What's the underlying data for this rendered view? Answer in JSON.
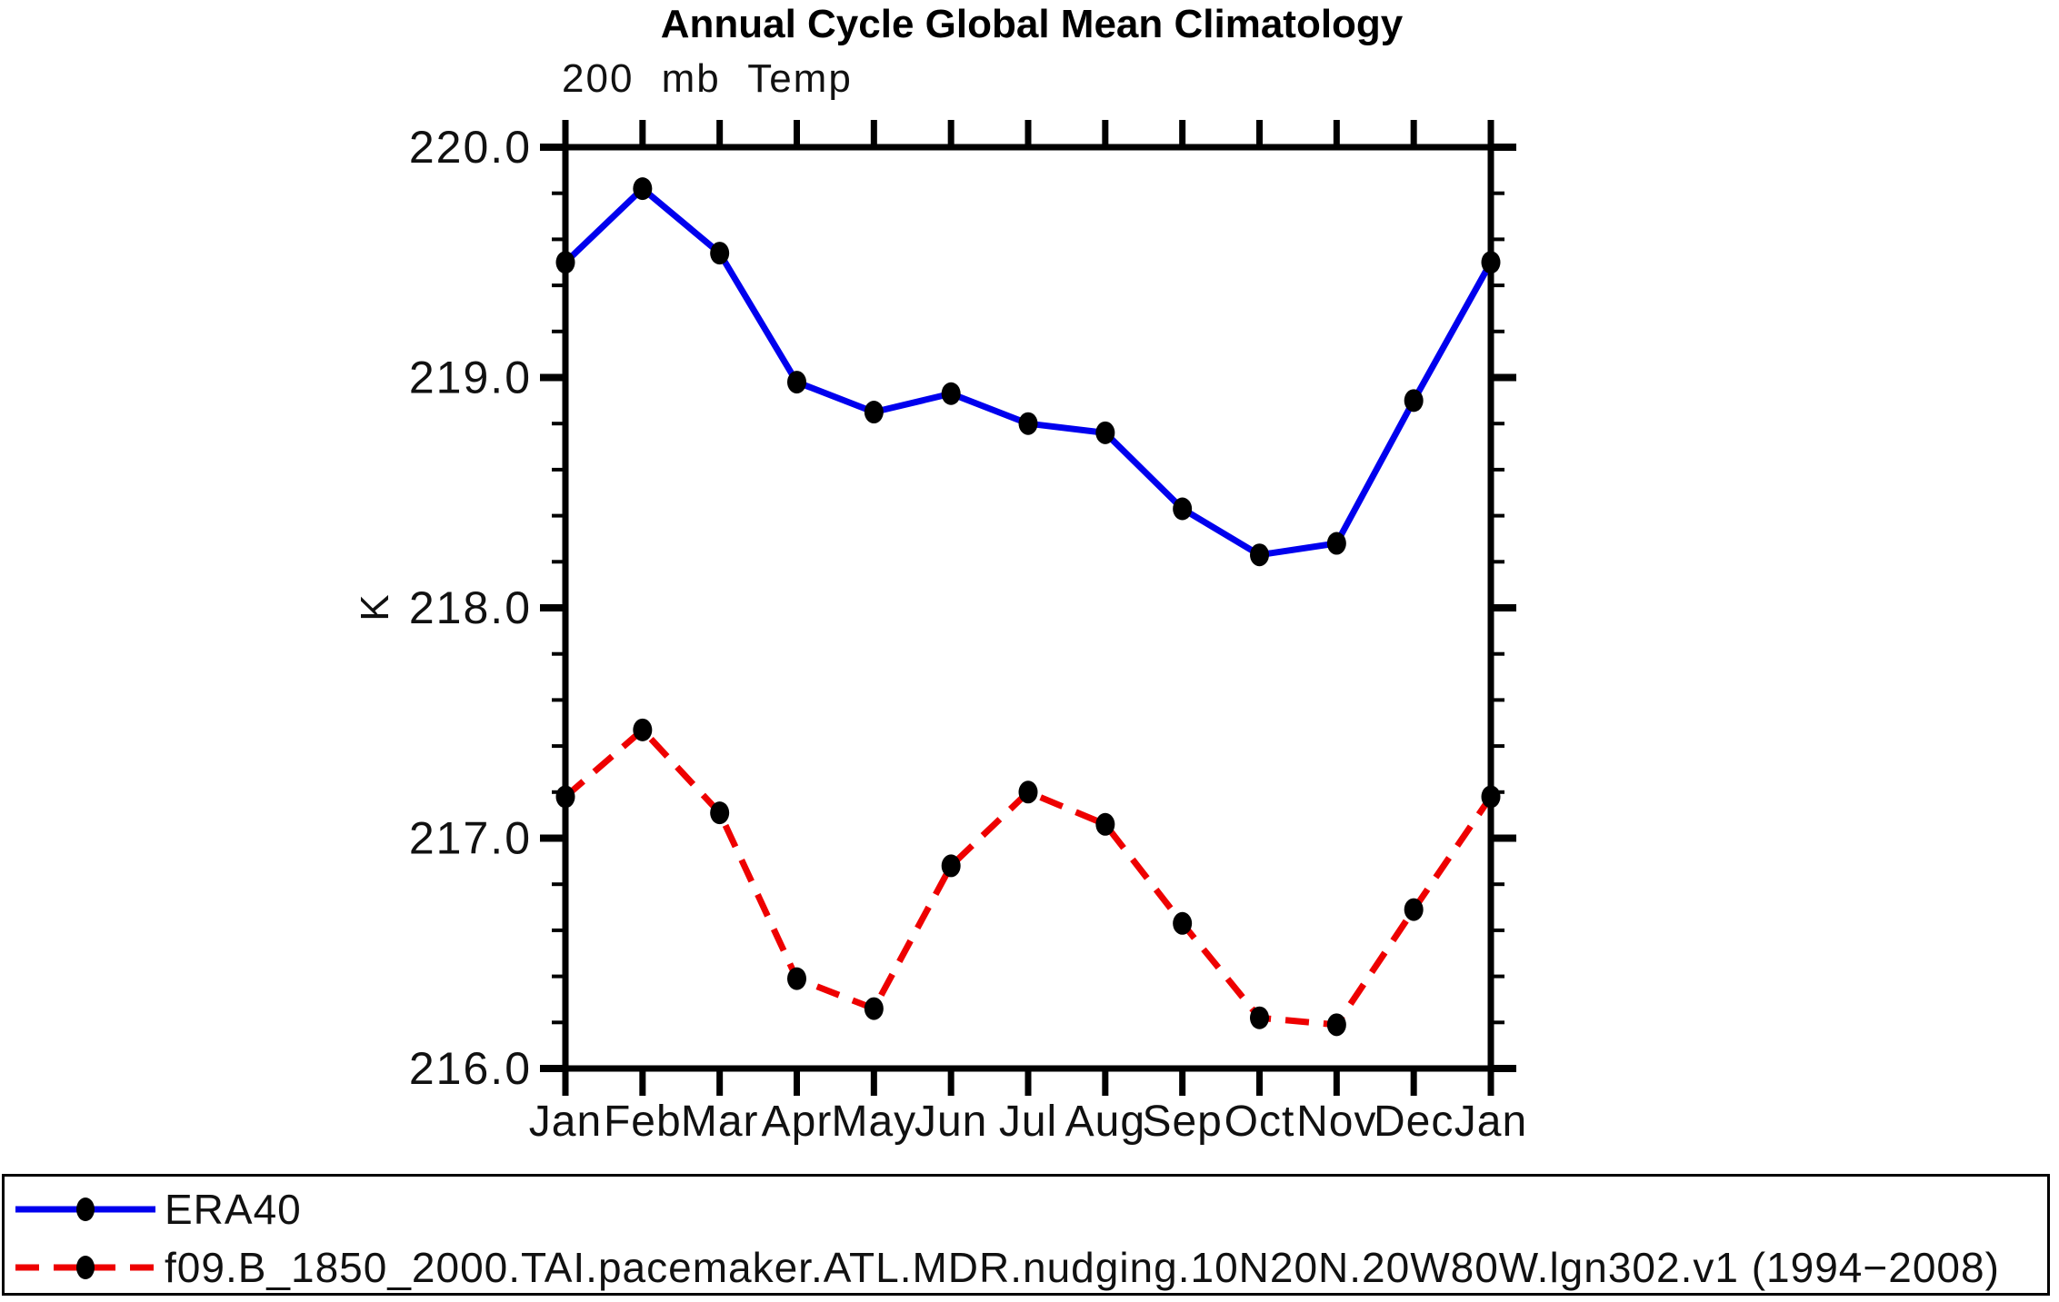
{
  "page": {
    "title": "Annual Cycle Global Mean Climatology",
    "subtitle": "200 mb Temp",
    "y_axis_title": "K"
  },
  "chart_data": {
    "type": "line",
    "title": "Annual Cycle Global Mean Climatology",
    "subtitle": "200 mb Temp",
    "xlabel": "",
    "ylabel": "K",
    "categories": [
      "Jan",
      "Feb",
      "Mar",
      "Apr",
      "May",
      "Jun",
      "Jul",
      "Aug",
      "Sep",
      "Oct",
      "Nov",
      "Dec",
      "Jan"
    ],
    "ylim": [
      216.0,
      220.0
    ],
    "y_major_ticks": [
      220.0,
      219.0,
      218.0,
      217.0,
      216.0
    ],
    "y_tick_labels": [
      "220.0",
      "219.0",
      "218.0",
      "217.0",
      "216.0"
    ],
    "y_minor_step": 0.2,
    "grid": false,
    "legend_position": "bottom",
    "marker_color": "#000000",
    "series": [
      {
        "name": "ERA40",
        "color": "#0000ee",
        "line_style": "solid",
        "marker": "circle",
        "values": [
          219.5,
          219.82,
          219.54,
          218.98,
          218.85,
          218.93,
          218.8,
          218.76,
          218.43,
          218.23,
          218.28,
          218.9,
          219.5
        ]
      },
      {
        "name": "f09.B_1850_2000.TAI.pacemaker.ATL.MDR.nudging.10N20N.20W80W.lgn302.v1 (1994−2008)",
        "color": "#ee0000",
        "line_style": "dashed",
        "marker": "circle",
        "values": [
          217.18,
          217.47,
          217.11,
          216.39,
          216.26,
          216.88,
          217.2,
          217.06,
          216.63,
          216.22,
          216.19,
          216.69,
          217.18
        ]
      }
    ]
  }
}
